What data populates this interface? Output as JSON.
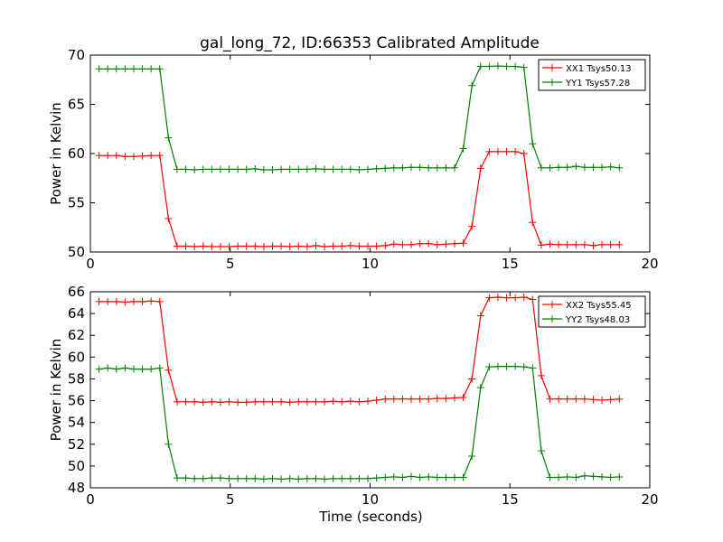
{
  "chart_data": [
    {
      "type": "line",
      "title": "gal_long_72, ID:66353 Calibrated Amplitude",
      "xlabel": "",
      "ylabel": "Power in Kelvin",
      "xlim": [
        0,
        20
      ],
      "ylim": [
        50,
        70
      ],
      "xticks": [
        0,
        5,
        10,
        15,
        20
      ],
      "yticks": [
        50,
        55,
        60,
        65,
        70
      ],
      "grid": false,
      "legend_position": "top-right",
      "markers": "plus",
      "x": [
        0.31,
        0.62,
        0.93,
        1.24,
        1.55,
        1.86,
        2.17,
        2.48,
        2.79,
        3.1,
        3.41,
        3.72,
        4.03,
        4.34,
        4.65,
        4.96,
        5.27,
        5.58,
        5.89,
        6.2,
        6.51,
        6.82,
        7.13,
        7.44,
        7.75,
        8.06,
        8.37,
        8.68,
        8.99,
        9.3,
        9.61,
        9.92,
        10.23,
        10.54,
        10.85,
        11.16,
        11.47,
        11.78,
        12.09,
        12.4,
        12.71,
        13.02,
        13.33,
        13.64,
        13.95,
        14.26,
        14.57,
        14.88,
        15.19,
        15.5,
        15.81,
        16.12,
        16.43,
        16.74,
        17.05,
        17.36,
        17.67,
        17.98,
        18.29,
        18.6,
        18.91
      ],
      "series": [
        {
          "name": "XX1 Tsys50.13",
          "color": "#ff0000",
          "values": [
            59.8,
            59.8,
            59.8,
            59.7,
            59.7,
            59.75,
            59.8,
            59.8,
            53.4,
            50.6,
            50.6,
            50.55,
            50.6,
            50.55,
            50.55,
            50.55,
            50.6,
            50.6,
            50.6,
            50.55,
            50.6,
            50.6,
            50.55,
            50.6,
            50.55,
            50.65,
            50.55,
            50.6,
            50.6,
            50.65,
            50.6,
            50.6,
            50.6,
            50.65,
            50.8,
            50.75,
            50.75,
            50.85,
            50.85,
            50.75,
            50.8,
            50.85,
            50.9,
            52.6,
            58.5,
            60.2,
            60.2,
            60.2,
            60.2,
            60.0,
            53.0,
            50.7,
            50.8,
            50.75,
            50.75,
            50.75,
            50.75,
            50.65,
            50.75,
            50.75,
            50.75
          ]
        },
        {
          "name": "YY1 Tsys57.28",
          "color": "#008000",
          "values": [
            68.6,
            68.6,
            68.6,
            68.6,
            68.6,
            68.6,
            68.6,
            68.6,
            61.6,
            58.4,
            58.4,
            58.35,
            58.4,
            58.4,
            58.4,
            58.4,
            58.4,
            58.4,
            58.45,
            58.35,
            58.35,
            58.4,
            58.4,
            58.4,
            58.4,
            58.45,
            58.4,
            58.4,
            58.4,
            58.4,
            58.35,
            58.4,
            58.45,
            58.5,
            58.55,
            58.55,
            58.6,
            58.6,
            58.55,
            58.55,
            58.55,
            58.55,
            60.5,
            66.9,
            68.85,
            68.85,
            68.9,
            68.85,
            68.85,
            68.75,
            61.0,
            58.55,
            58.55,
            58.6,
            58.6,
            58.7,
            58.6,
            58.6,
            58.6,
            58.65,
            58.55
          ]
        }
      ]
    },
    {
      "type": "line",
      "title": "",
      "xlabel": "Time (seconds)",
      "ylabel": "Power in Kelvin",
      "xlim": [
        0,
        20
      ],
      "ylim": [
        48,
        66
      ],
      "xticks": [
        0,
        5,
        10,
        15,
        20
      ],
      "yticks": [
        48,
        50,
        52,
        54,
        56,
        58,
        60,
        62,
        64,
        66
      ],
      "grid": false,
      "legend_position": "top-right",
      "markers": "plus",
      "x": [
        0.31,
        0.62,
        0.93,
        1.24,
        1.55,
        1.86,
        2.17,
        2.48,
        2.79,
        3.1,
        3.41,
        3.72,
        4.03,
        4.34,
        4.65,
        4.96,
        5.27,
        5.58,
        5.89,
        6.2,
        6.51,
        6.82,
        7.13,
        7.44,
        7.75,
        8.06,
        8.37,
        8.68,
        8.99,
        9.3,
        9.61,
        9.92,
        10.23,
        10.54,
        10.85,
        11.16,
        11.47,
        11.78,
        12.09,
        12.4,
        12.71,
        13.02,
        13.33,
        13.64,
        13.95,
        14.26,
        14.57,
        14.88,
        15.19,
        15.5,
        15.81,
        16.12,
        16.43,
        16.74,
        17.05,
        17.36,
        17.67,
        17.98,
        18.29,
        18.6,
        18.91
      ],
      "series": [
        {
          "name": "XX2 Tsys55.45",
          "color": "#ff0000",
          "values": [
            65.1,
            65.1,
            65.1,
            65.05,
            65.1,
            65.1,
            65.15,
            65.1,
            58.8,
            55.9,
            55.9,
            55.9,
            55.85,
            55.9,
            55.85,
            55.9,
            55.85,
            55.85,
            55.9,
            55.9,
            55.9,
            55.9,
            55.85,
            55.9,
            55.9,
            55.9,
            55.9,
            55.95,
            55.9,
            55.95,
            55.9,
            55.95,
            56.05,
            56.15,
            56.15,
            56.15,
            56.15,
            56.15,
            56.15,
            56.2,
            56.2,
            56.25,
            56.3,
            58.0,
            63.8,
            65.45,
            65.5,
            65.45,
            65.45,
            65.5,
            65.3,
            58.3,
            56.15,
            56.15,
            56.15,
            56.15,
            56.15,
            56.1,
            56.05,
            56.1,
            56.15
          ]
        },
        {
          "name": "YY2 Tsys48.03",
          "color": "#008000",
          "values": [
            58.9,
            59.0,
            58.9,
            59.0,
            58.9,
            58.9,
            58.9,
            59.0,
            52.0,
            48.9,
            48.9,
            48.85,
            48.85,
            48.9,
            48.9,
            48.85,
            48.85,
            48.85,
            48.85,
            48.8,
            48.85,
            48.8,
            48.85,
            48.8,
            48.85,
            48.85,
            48.8,
            48.85,
            48.85,
            48.85,
            48.85,
            48.85,
            48.9,
            48.95,
            49.0,
            48.95,
            49.05,
            48.95,
            49.0,
            48.95,
            48.95,
            48.95,
            48.95,
            50.9,
            57.2,
            59.1,
            59.15,
            59.15,
            59.15,
            59.1,
            59.0,
            51.4,
            48.95,
            48.95,
            49.0,
            48.95,
            49.1,
            49.05,
            49.0,
            48.95,
            49.0
          ]
        }
      ]
    }
  ]
}
